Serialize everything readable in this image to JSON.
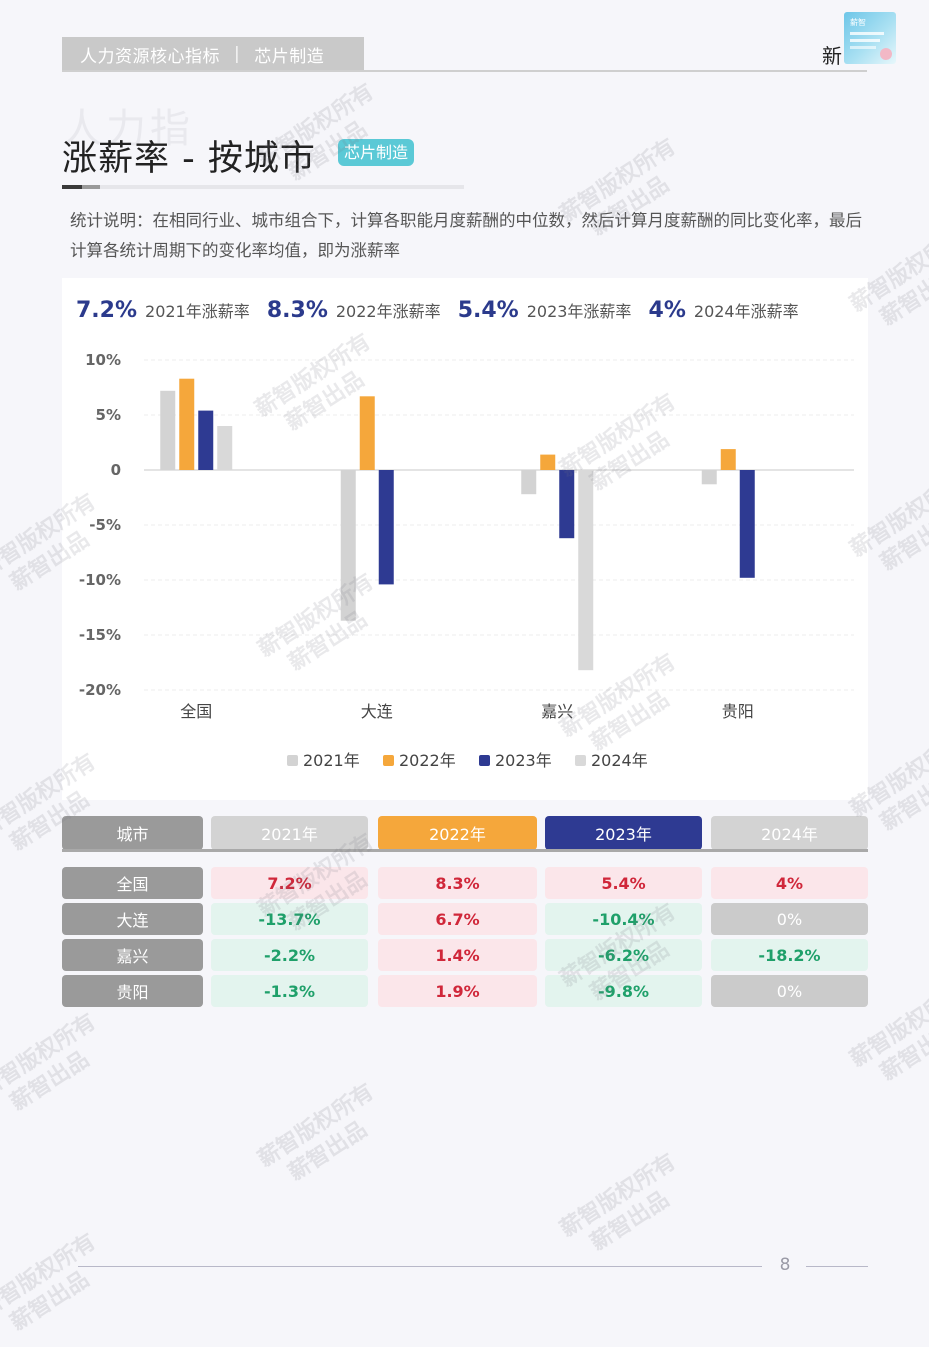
{
  "header": {
    "section": "人力资源核心指标",
    "separator": "|",
    "industry": "芯片制造",
    "brand": "新"
  },
  "title": {
    "ghost": "人力指",
    "main": "涨薪率 - 按城市",
    "badge": "芯片制造"
  },
  "description": "统计说明：在相同行业、城市组合下，计算各职能月度薪酬的中位数，然后计算月度薪酬的同比变化率，最后计算各统计周期下的变化率均值，即为涨薪率",
  "summary": [
    {
      "value": "7.2%",
      "label": "2021年涨薪率"
    },
    {
      "value": "8.3%",
      "label": "2022年涨薪率"
    },
    {
      "value": "5.4%",
      "label": "2023年涨薪率"
    },
    {
      "value": "4%",
      "label": "2024年涨薪率"
    }
  ],
  "chart_data": {
    "type": "bar",
    "title": "",
    "categories": [
      "全国",
      "大连",
      "嘉兴",
      "贵阳"
    ],
    "series": [
      {
        "name": "2021年",
        "color": "#d3d3d3",
        "values": [
          7.2,
          -13.7,
          -2.2,
          -1.3
        ]
      },
      {
        "name": "2022年",
        "color": "#f5a73b",
        "values": [
          8.3,
          6.7,
          1.4,
          1.9
        ]
      },
      {
        "name": "2023年",
        "color": "#2e3a92",
        "values": [
          5.4,
          -10.4,
          -6.2,
          -9.8
        ]
      },
      {
        "name": "2024年",
        "color": "#d9d9d9",
        "values": [
          4,
          0,
          -18.2,
          0
        ]
      }
    ],
    "ylim": [
      -20,
      10
    ],
    "yticks": [
      10,
      5,
      0,
      -5,
      -10,
      -15,
      -20
    ],
    "ytick_labels": [
      "10%",
      "5%",
      "0",
      "-5%",
      "-10%",
      "-15%",
      "-20%"
    ],
    "xlabel": "",
    "ylabel": "",
    "legend": "bottom"
  },
  "table": {
    "headers": [
      "城市",
      "2021年",
      "2022年",
      "2023年",
      "2024年"
    ],
    "header_colors": [
      "#9a9a9a",
      "#d3d3d3",
      "#f5a73b",
      "#2e3a92",
      "#d3d3d3"
    ],
    "rows": [
      {
        "city": "全国",
        "values": [
          "7.2%",
          "8.3%",
          "5.4%",
          "4%"
        ]
      },
      {
        "city": "大连",
        "values": [
          "-13.7%",
          "6.7%",
          "-10.4%",
          "0%"
        ]
      },
      {
        "city": "嘉兴",
        "values": [
          "-2.2%",
          "1.4%",
          "-6.2%",
          "-18.2%"
        ]
      },
      {
        "city": "贵阳",
        "values": [
          "-1.3%",
          "1.9%",
          "-9.8%",
          "0%"
        ]
      }
    ]
  },
  "watermark": {
    "line1": "薪智版权所有",
    "line2": "薪智出品"
  },
  "footer": {
    "page": "8"
  }
}
